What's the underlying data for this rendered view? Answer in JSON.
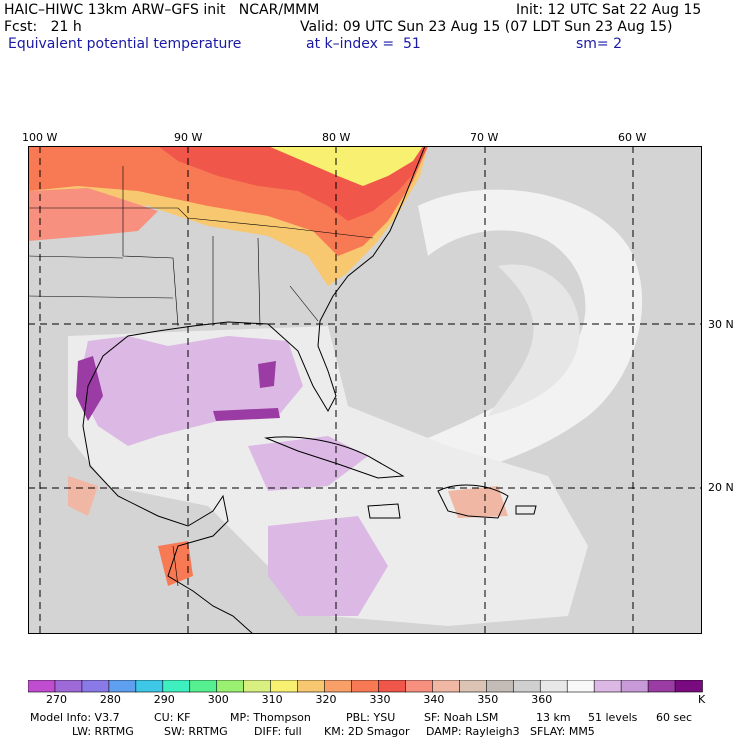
{
  "header": {
    "title_left": "HAIC–HIWC 13km ARW–GFS init   NCAR/MMM",
    "init": "Init: 12 UTC Sat 22 Aug 15",
    "fcst": "Fcst:   21 h",
    "valid": "Valid: 09 UTC Sun 23 Aug 15 (07 LDT Sun 23 Aug 15)",
    "field": "Equivalent potential temperature",
    "level": "at k–index =  51",
    "sm": "sm= 2"
  },
  "map": {
    "lon_labels": [
      "100 W",
      "90 W",
      "80 W",
      "70 W",
      "60 W"
    ],
    "lat_labels": [
      "30 N",
      "20 N"
    ]
  },
  "colorbar": {
    "colors": [
      "#c04cd0",
      "#9e6ad8",
      "#8a7ae8",
      "#5f9ff0",
      "#3ec8e8",
      "#3ef0c0",
      "#57f090",
      "#9af070",
      "#d8f080",
      "#f8f070",
      "#f8c870",
      "#f8a068",
      "#f87a55",
      "#f0564a",
      "#f89080",
      "#f0b8a4",
      "#dcc4b4",
      "#c4bcb6",
      "#d0d0d0",
      "#e8e8e8",
      "#f8f8f8",
      "#dcb8e4",
      "#c89ad8",
      "#9a3ca4",
      "#7a0a80"
    ],
    "labels": [
      "270",
      "280",
      "290",
      "300",
      "310",
      "320",
      "330",
      "340",
      "350",
      "360"
    ],
    "unit": "K"
  },
  "footer": {
    "line1": [
      "Model Info: V3.7",
      "CU: KF",
      "MP: Thompson",
      "PBL: YSU",
      "SF: Noah LSM",
      "13 km",
      "51 levels",
      "60 sec"
    ],
    "line2": [
      "LW: RRTMG",
      "SW: RRTMG",
      "DIFF: full",
      "KM: 2D Smagor",
      "DAMP: Rayleigh3",
      "SFLAY: MM5"
    ]
  }
}
